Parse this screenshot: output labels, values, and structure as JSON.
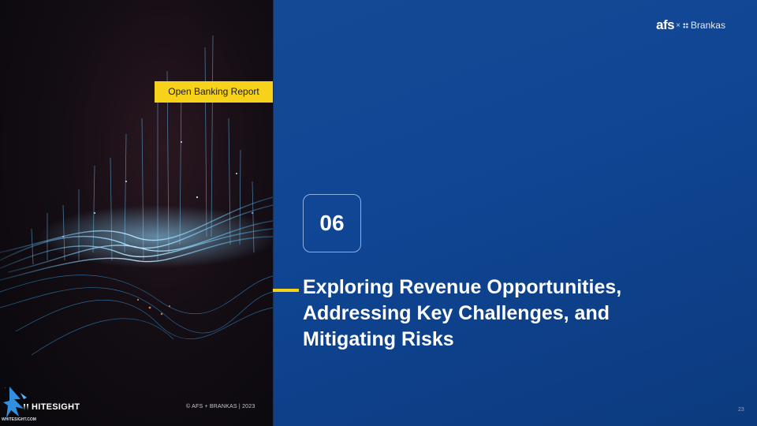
{
  "report_tag": "Open Banking Report",
  "section": {
    "number": "06",
    "title_lines": [
      "Exploring Revenue Opportunities,",
      "Addressing Key Challenges, and",
      "Mitigating Risks"
    ]
  },
  "brand": {
    "afs": "afs",
    "separator": "×",
    "partner": "Brankas"
  },
  "footer": {
    "copyright": "© AFS + BRANKAS | 2023",
    "page_number": "23"
  },
  "watermark": {
    "name": "HITESIGHT",
    "url": "WHITESIGHT.COM",
    "icon": "eagle-logo-icon"
  },
  "colors": {
    "accent": "#f7d21a",
    "background": "#0f4593",
    "text": "#ffffff"
  }
}
